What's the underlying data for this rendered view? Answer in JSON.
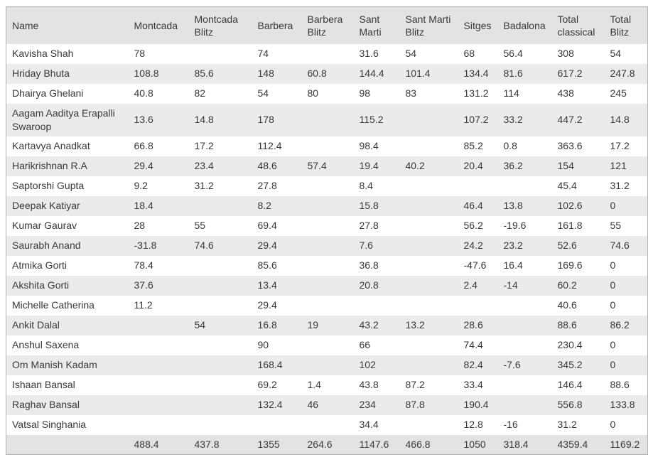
{
  "table": {
    "columns": [
      "Name",
      "Montcada",
      "Montcada Blitz",
      "Barbera",
      "Barbera Blitz",
      "Sant Marti",
      "Sant Marti Blitz",
      "Sitges",
      "Badalona",
      "Total classical",
      "Total Blitz"
    ],
    "rows": [
      {
        "name": "Kavisha Shah",
        "values": [
          "78",
          "",
          "74",
          "",
          "31.6",
          "54",
          "68",
          "56.4",
          "308",
          "54"
        ]
      },
      {
        "name": "Hriday Bhuta",
        "values": [
          "108.8",
          "85.6",
          "148",
          "60.8",
          "144.4",
          "101.4",
          "134.4",
          "81.6",
          "617.2",
          "247.8"
        ]
      },
      {
        "name": "Dhairya Ghelani",
        "values": [
          "40.8",
          "82",
          "54",
          "80",
          "98",
          "83",
          "131.2",
          "114",
          "438",
          "245"
        ]
      },
      {
        "name": "Aagam Aaditya Erapalli Swaroop",
        "values": [
          "13.6",
          "14.8",
          "178",
          "",
          "115.2",
          "",
          "107.2",
          "33.2",
          "447.2",
          "14.8"
        ]
      },
      {
        "name": "Kartavya Anadkat",
        "values": [
          "66.8",
          "17.2",
          "112.4",
          "",
          "98.4",
          "",
          "85.2",
          "0.8",
          "363.6",
          "17.2"
        ]
      },
      {
        "name": "Harikrishnan R.A",
        "values": [
          "29.4",
          "23.4",
          "48.6",
          "57.4",
          "19.4",
          "40.2",
          "20.4",
          "36.2",
          "154",
          "121"
        ]
      },
      {
        "name": "Saptorshi Gupta",
        "values": [
          "9.2",
          "31.2",
          "27.8",
          "",
          "8.4",
          "",
          "",
          "",
          "45.4",
          "31.2"
        ]
      },
      {
        "name": "Deepak Katiyar",
        "values": [
          "18.4",
          "",
          "8.2",
          "",
          "15.8",
          "",
          "46.4",
          "13.8",
          "102.6",
          "0"
        ]
      },
      {
        "name": "Kumar Gaurav",
        "values": [
          "28",
          "55",
          "69.4",
          "",
          "27.8",
          "",
          "56.2",
          "-19.6",
          "161.8",
          "55"
        ]
      },
      {
        "name": "Saurabh Anand",
        "values": [
          "-31.8",
          "74.6",
          "29.4",
          "",
          "7.6",
          "",
          "24.2",
          "23.2",
          "52.6",
          "74.6"
        ]
      },
      {
        "name": "Atmika Gorti",
        "values": [
          "78.4",
          "",
          "85.6",
          "",
          "36.8",
          "",
          "-47.6",
          "16.4",
          "169.6",
          "0"
        ]
      },
      {
        "name": "Akshita Gorti",
        "values": [
          "37.6",
          "",
          "13.4",
          "",
          "20.8",
          "",
          "2.4",
          "-14",
          "60.2",
          "0"
        ]
      },
      {
        "name": "Michelle Catherina",
        "values": [
          "11.2",
          "",
          "29.4",
          "",
          "",
          "",
          "",
          "",
          "40.6",
          "0"
        ]
      },
      {
        "name": "Ankit Dalal",
        "values": [
          "",
          "54",
          "16.8",
          "19",
          "43.2",
          "13.2",
          "28.6",
          "",
          "88.6",
          "86.2"
        ]
      },
      {
        "name": "Anshul Saxena",
        "values": [
          "",
          "",
          "90",
          "",
          "66",
          "",
          "74.4",
          "",
          "230.4",
          "0"
        ]
      },
      {
        "name": "Om Manish Kadam",
        "values": [
          "",
          "",
          "168.4",
          "",
          "102",
          "",
          "82.4",
          "-7.6",
          "345.2",
          "0"
        ]
      },
      {
        "name": "Ishaan Bansal",
        "values": [
          "",
          "",
          "69.2",
          "1.4",
          "43.8",
          "87.2",
          "33.4",
          "",
          "146.4",
          "88.6"
        ]
      },
      {
        "name": "Raghav Bansal",
        "values": [
          "",
          "",
          "132.4",
          "46",
          "234",
          "87.8",
          "190.4",
          "",
          "556.8",
          "133.8"
        ]
      },
      {
        "name": "Vatsal Singhania",
        "values": [
          "",
          "",
          "",
          "",
          "34.4",
          "",
          "12.8",
          "-16",
          "31.2",
          "0"
        ]
      }
    ],
    "totals": [
      "488.4",
      "437.8",
      "1355",
      "264.6",
      "1147.6",
      "466.8",
      "1050",
      "318.4",
      "4359.4",
      "1169.2"
    ],
    "colors": {
      "header_bg": "#e3e3e3",
      "stripe_bg": "#ebebeb",
      "border": "#b2b2b2",
      "text": "#383838"
    }
  }
}
